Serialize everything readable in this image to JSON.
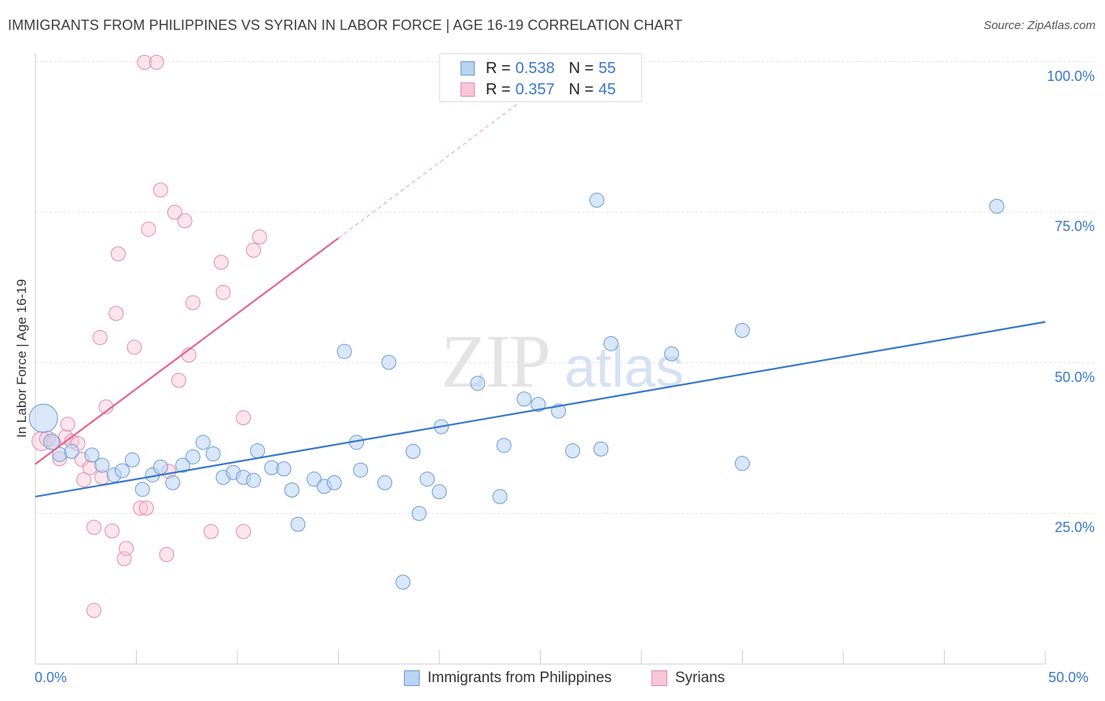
{
  "title": "IMMIGRANTS FROM PHILIPPINES VS SYRIAN IN LABOR FORCE | AGE 16-19 CORRELATION CHART",
  "source": "Source: ZipAtlas.com",
  "watermark": {
    "zip": "ZIP",
    "atlas": "atlas"
  },
  "legend": {
    "r_key": "R =",
    "n_key": "N =",
    "rows": [
      {
        "r": "0.538",
        "n": "55",
        "fill": "#b9d3f3",
        "stroke": "#6a9ad6"
      },
      {
        "r": "0.357",
        "n": "45",
        "fill": "#f8c6d6",
        "stroke": "#e38aa8"
      }
    ]
  },
  "bottom_legend": [
    "Immigrants from Philippines",
    "Syrians"
  ],
  "chart_data": {
    "type": "scatter",
    "title": "IMMIGRANTS FROM PHILIPPINES VS SYRIAN IN LABOR FORCE | AGE 16-19 CORRELATION CHART",
    "xlabel": "",
    "ylabel": "In Labor Force | Age 16-19",
    "xlim": [
      0,
      50
    ],
    "ylim": [
      0,
      105
    ],
    "x_tick_labels": [
      "0.0%",
      "50.0%"
    ],
    "y_tick_labels": [
      "25.0%",
      "50.0%",
      "75.0%",
      "100.0%"
    ],
    "y_tick_values": [
      25,
      50,
      75,
      100
    ],
    "grid": true,
    "legend_position": "top-center",
    "colors": {
      "philippines": "#3a78c9",
      "syrians": "#e8628a",
      "axis_text": "#3a78c9"
    },
    "series": [
      {
        "name": "Immigrants from Philippines",
        "R": 0.538,
        "N": 55,
        "color": "#3a78c9",
        "trend": {
          "x": [
            0,
            50
          ],
          "y": [
            27.8,
            56.8
          ]
        },
        "points": [
          [
            0.4,
            40.8,
            18
          ],
          [
            0.8,
            36.9,
            10
          ],
          [
            1.2,
            34.8,
            9
          ],
          [
            1.8,
            35.3,
            9
          ],
          [
            2.8,
            34.7,
            9
          ],
          [
            3.3,
            33.0,
            9
          ],
          [
            3.9,
            31.4,
            9
          ],
          [
            4.3,
            32.1,
            9
          ],
          [
            4.8,
            33.9,
            9
          ],
          [
            5.3,
            29.0,
            9
          ],
          [
            5.8,
            31.4,
            9
          ],
          [
            6.2,
            32.7,
            9
          ],
          [
            6.8,
            30.1,
            9
          ],
          [
            7.3,
            33.0,
            9
          ],
          [
            7.8,
            34.4,
            9
          ],
          [
            8.3,
            36.8,
            9
          ],
          [
            8.8,
            34.9,
            9
          ],
          [
            9.3,
            31.0,
            9
          ],
          [
            9.8,
            31.8,
            9
          ],
          [
            10.3,
            31.0,
            9
          ],
          [
            10.8,
            30.5,
            9
          ],
          [
            11.0,
            35.4,
            9
          ],
          [
            11.7,
            32.6,
            9
          ],
          [
            12.3,
            32.4,
            9
          ],
          [
            12.7,
            28.9,
            9
          ],
          [
            13.0,
            23.2,
            9
          ],
          [
            13.8,
            30.7,
            9
          ],
          [
            14.3,
            29.5,
            9
          ],
          [
            14.8,
            30.1,
            9
          ],
          [
            15.3,
            51.9,
            9
          ],
          [
            15.9,
            36.8,
            9
          ],
          [
            16.1,
            32.2,
            9
          ],
          [
            17.3,
            30.1,
            9
          ],
          [
            17.5,
            50.1,
            9
          ],
          [
            18.2,
            13.6,
            9
          ],
          [
            18.7,
            35.3,
            9
          ],
          [
            19.0,
            25.0,
            9
          ],
          [
            19.4,
            30.7,
            9
          ],
          [
            20.0,
            28.6,
            9
          ],
          [
            20.1,
            39.4,
            9
          ],
          [
            21.9,
            46.6,
            9
          ],
          [
            23.0,
            27.8,
            9
          ],
          [
            23.2,
            36.3,
            9
          ],
          [
            24.2,
            44.0,
            9
          ],
          [
            24.9,
            43.1,
            9
          ],
          [
            25.9,
            42.0,
            9
          ],
          [
            26.6,
            35.4,
            9
          ],
          [
            27.8,
            77.0,
            9
          ],
          [
            28.0,
            35.7,
            9
          ],
          [
            28.5,
            53.2,
            9
          ],
          [
            31.5,
            51.5,
            9
          ],
          [
            35.0,
            55.4,
            9
          ],
          [
            35.0,
            33.3,
            9
          ],
          [
            47.6,
            76.0,
            9
          ]
        ]
      },
      {
        "name": "Syrians",
        "R": 0.357,
        "N": 45,
        "color": "#e8628a",
        "trend": {
          "x": [
            0,
            15
          ],
          "y": [
            33.2,
            70.7
          ]
        },
        "trend_dashed": {
          "x": [
            15,
            26.5
          ],
          "y": [
            70.7,
            99.6
          ]
        },
        "points": [
          [
            0.3,
            37.0,
            12
          ],
          [
            0.6,
            37.4,
            10
          ],
          [
            0.9,
            36.8,
            9
          ],
          [
            1.2,
            34.1,
            9
          ],
          [
            1.5,
            37.7,
            9
          ],
          [
            1.6,
            39.8,
            9
          ],
          [
            1.8,
            37.0,
            9
          ],
          [
            2.1,
            36.6,
            9
          ],
          [
            2.3,
            34.0,
            9
          ],
          [
            2.4,
            30.6,
            9
          ],
          [
            2.7,
            32.6,
            9
          ],
          [
            2.9,
            22.7,
            9
          ],
          [
            2.9,
            8.9,
            9
          ],
          [
            3.2,
            54.2,
            9
          ],
          [
            3.3,
            31.0,
            9
          ],
          [
            3.5,
            42.7,
            9
          ],
          [
            3.8,
            22.1,
            9
          ],
          [
            4.0,
            58.2,
            9
          ],
          [
            4.1,
            68.1,
            9
          ],
          [
            4.4,
            17.5,
            9
          ],
          [
            4.5,
            19.2,
            9
          ],
          [
            4.9,
            52.6,
            9
          ],
          [
            5.2,
            25.9,
            9
          ],
          [
            5.5,
            25.9,
            9
          ],
          [
            5.4,
            99.9,
            9
          ],
          [
            5.6,
            72.2,
            9
          ],
          [
            6.0,
            99.9,
            9
          ],
          [
            6.2,
            78.7,
            9
          ],
          [
            6.5,
            18.2,
            9
          ],
          [
            6.6,
            32.0,
            9
          ],
          [
            6.9,
            75.0,
            9
          ],
          [
            7.1,
            47.1,
            9
          ],
          [
            7.4,
            73.6,
            9
          ],
          [
            7.6,
            51.3,
            9
          ],
          [
            7.8,
            60.0,
            9
          ],
          [
            8.7,
            22.0,
            9
          ],
          [
            9.2,
            66.7,
            9
          ],
          [
            9.3,
            61.7,
            9
          ],
          [
            10.3,
            40.9,
            9
          ],
          [
            10.3,
            22.0,
            9
          ],
          [
            10.8,
            68.7,
            9
          ],
          [
            11.1,
            70.9,
            9
          ]
        ]
      }
    ]
  }
}
